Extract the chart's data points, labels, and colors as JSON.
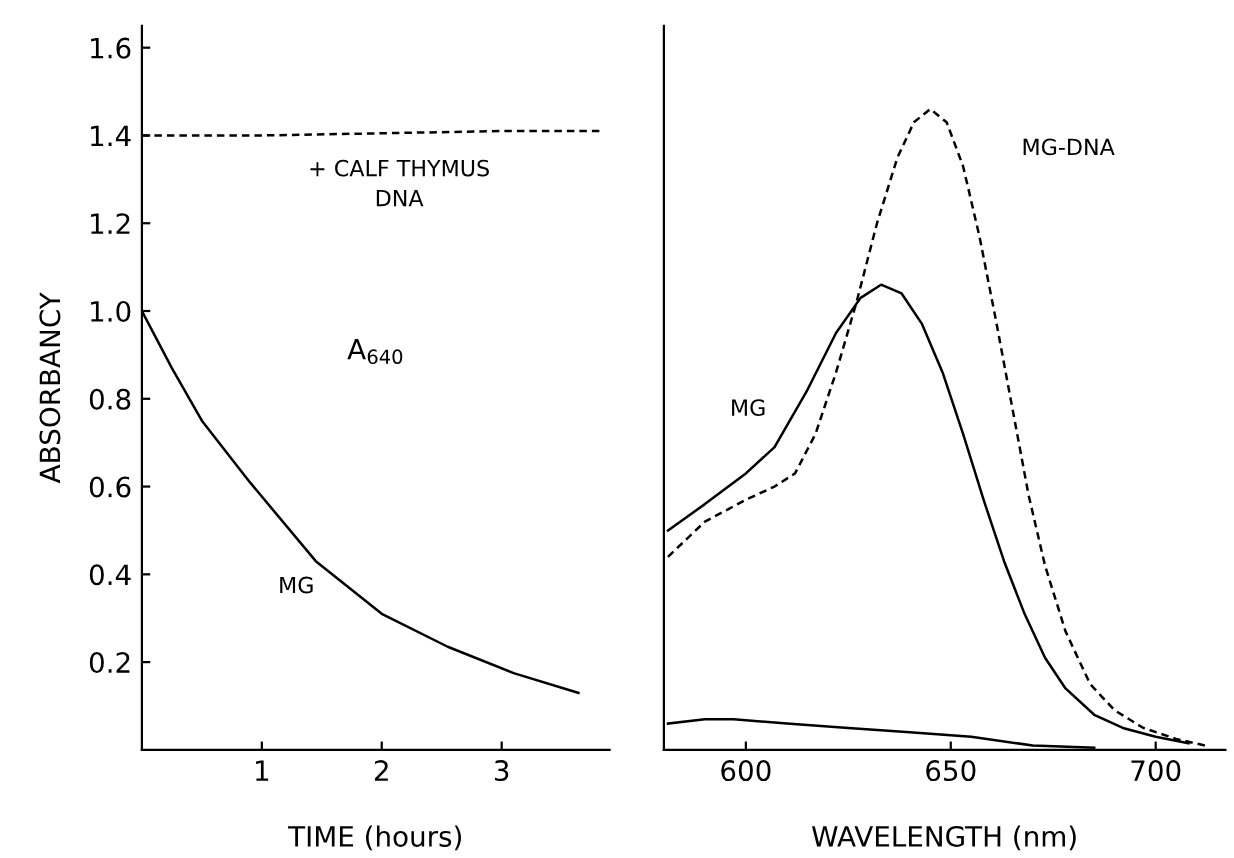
{
  "chart_data": [
    {
      "type": "line",
      "xlabel": "TIME (hours)",
      "ylabel": "ABSORBANCY",
      "annotations": [
        "A$_{640}$"
      ],
      "xlim": [
        0,
        3.9
      ],
      "xticks": [
        1,
        2,
        3
      ],
      "ylim": [
        0,
        1.65
      ],
      "yticks": [
        {
          "value": 0.2,
          "label": "0.2"
        },
        {
          "value": 0.4,
          "label": "0.4"
        },
        {
          "value": 0.6,
          "label": "0.6"
        },
        {
          "value": 0.8,
          "label": "0.8"
        },
        {
          "value": 1.0,
          "label": "1.0"
        },
        {
          "value": 1.2,
          "label": "1.2"
        },
        {
          "value": 1.4,
          "label": "1.4"
        },
        {
          "value": 1.6,
          "label": "1.6"
        }
      ],
      "series": [
        {
          "name": "+ CALF THYMUS\nDNA",
          "color": "#000000",
          "line_style": "dashed",
          "x": [
            0,
            1,
            2,
            3,
            3.85
          ],
          "values": [
            1.4,
            1.4,
            1.405,
            1.41,
            1.41
          ]
        },
        {
          "name": "MG",
          "color": "#000000",
          "line_style": "solid",
          "x": [
            0,
            0.25,
            0.5,
            0.9,
            1.45,
            2.0,
            2.55,
            3.1,
            3.64
          ],
          "values": [
            1.0,
            0.87,
            0.75,
            0.61,
            0.43,
            0.31,
            0.235,
            0.175,
            0.13
          ]
        }
      ]
    },
    {
      "type": "line",
      "xlabel": "WAVELENGTH (nm)",
      "xlim": [
        580,
        717
      ],
      "xticks": [
        600,
        650,
        700
      ],
      "ylim": [
        0,
        1.65
      ],
      "tick_labels": "x",
      "series": [
        {
          "name": "MG",
          "color": "#000000",
          "line_style": "solid",
          "x": [
            581,
            590,
            600,
            607,
            615,
            622,
            628,
            633,
            638,
            643,
            648,
            653,
            658,
            663,
            668,
            673,
            678,
            685,
            692,
            700,
            708
          ],
          "values": [
            0.5,
            0.56,
            0.63,
            0.69,
            0.82,
            0.95,
            1.03,
            1.06,
            1.04,
            0.97,
            0.86,
            0.72,
            0.57,
            0.43,
            0.31,
            0.21,
            0.14,
            0.08,
            0.05,
            0.03,
            0.015
          ]
        },
        {
          "name": "MG-DNA",
          "color": "#000000",
          "line_style": "dashed",
          "x": [
            581,
            590,
            600,
            607,
            612,
            617,
            622,
            627,
            632,
            637,
            641,
            645,
            649,
            653,
            657,
            661,
            665,
            669,
            673,
            678,
            684,
            690,
            697,
            705,
            712
          ],
          "values": [
            0.44,
            0.52,
            0.57,
            0.6,
            0.63,
            0.72,
            0.86,
            1.02,
            1.2,
            1.35,
            1.43,
            1.46,
            1.43,
            1.33,
            1.17,
            0.98,
            0.78,
            0.58,
            0.42,
            0.27,
            0.15,
            0.09,
            0.05,
            0.025,
            0.01
          ]
        },
        {
          "color": "#000000",
          "line_style": "solid",
          "x": [
            581,
            590,
            597,
            610,
            625,
            640,
            655,
            670,
            685
          ],
          "values": [
            0.06,
            0.07,
            0.07,
            0.06,
            0.05,
            0.04,
            0.03,
            0.01,
            0.005
          ]
        }
      ]
    }
  ]
}
